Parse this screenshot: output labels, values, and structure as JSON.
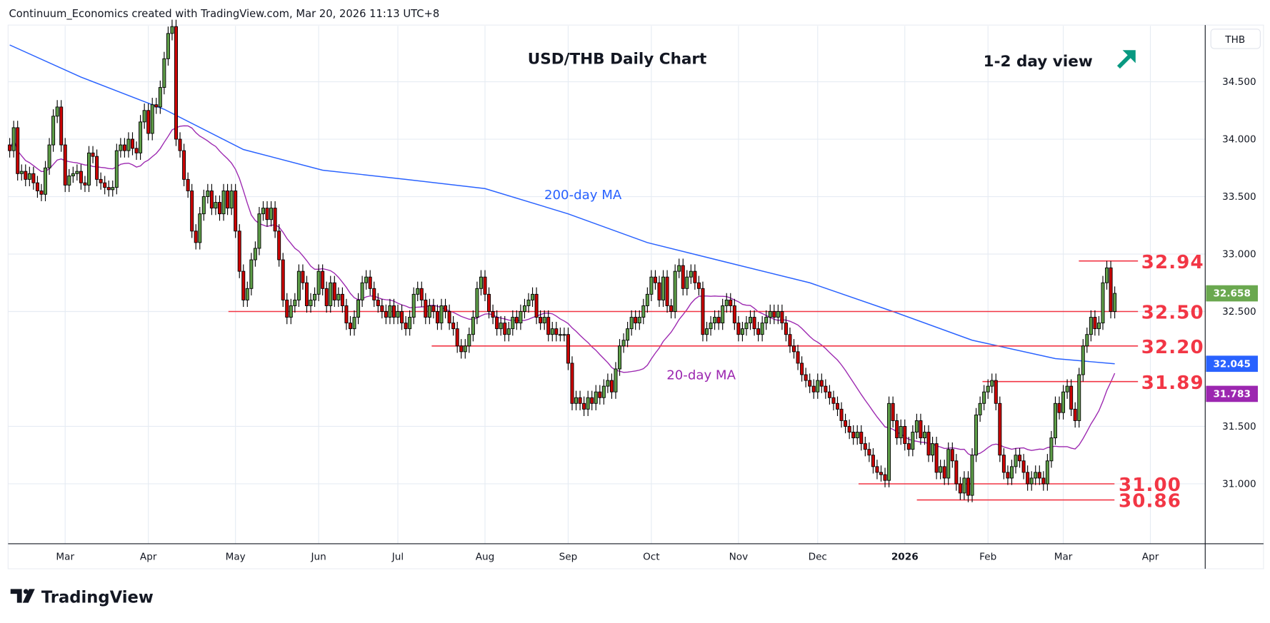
{
  "header": {
    "attribution": "Continuum_Economics created with TradingView.com, Mar 20, 2026 11:13 UTC+8"
  },
  "footer": {
    "logo_text": "TradingView"
  },
  "chart_data": {
    "type": "candlestick",
    "title": "USD/THB Daily Chart",
    "view_label": "1-2 day view",
    "view_icon": "arrow-up-right-icon",
    "currency": "THB",
    "ylim": [
      30.48,
      34.99
    ],
    "y_ticks": [
      "31.000",
      "31.500",
      "32.500",
      "33.000",
      "33.500",
      "34.000",
      "34.500"
    ],
    "y_tick_values": [
      31.0,
      31.5,
      32.5,
      33.0,
      33.5,
      34.0,
      34.5
    ],
    "x_ticks": [
      "Mar",
      "Apr",
      "May",
      "Jun",
      "Jul",
      "Aug",
      "Sep",
      "Oct",
      "Nov",
      "Dec",
      "2026",
      "Feb",
      "Mar",
      "Apr"
    ],
    "grid": true,
    "colors": {
      "up": "#5e9e48",
      "down": "#cc0000",
      "ma200": "#2962ff",
      "ma20": "#9c27b0",
      "levels": "#f23645",
      "last": "#6aa84f",
      "arrow": "#089981"
    },
    "closes": [
      33.9,
      34.1,
      33.7,
      33.72,
      33.65,
      33.7,
      33.62,
      33.55,
      33.52,
      33.75,
      33.95,
      34.2,
      34.28,
      33.95,
      33.6,
      33.68,
      33.7,
      33.72,
      33.62,
      33.6,
      33.88,
      33.85,
      33.65,
      33.62,
      33.58,
      33.56,
      33.58,
      33.9,
      33.95,
      33.9,
      34.0,
      33.92,
      33.88,
      34.15,
      34.25,
      34.05,
      34.3,
      34.28,
      34.45,
      34.7,
      34.92,
      34.98,
      34.0,
      33.9,
      33.65,
      33.55,
      33.2,
      33.1,
      33.35,
      33.5,
      33.55,
      33.4,
      33.45,
      33.35,
      33.55,
      33.4,
      33.55,
      33.2,
      32.85,
      32.6,
      32.7,
      32.95,
      33.05,
      33.35,
      33.4,
      33.3,
      33.4,
      33.2,
      32.95,
      32.6,
      32.45,
      32.55,
      32.6,
      32.85,
      32.75,
      32.55,
      32.6,
      32.65,
      32.85,
      32.7,
      32.55,
      32.75,
      32.6,
      32.65,
      32.55,
      32.4,
      32.35,
      32.45,
      32.6,
      32.75,
      32.8,
      32.7,
      32.6,
      32.55,
      32.5,
      32.45,
      32.55,
      32.45,
      32.5,
      32.4,
      32.35,
      32.45,
      32.65,
      32.7,
      32.6,
      32.45,
      32.55,
      32.5,
      32.4,
      32.55,
      32.5,
      32.4,
      32.35,
      32.2,
      32.15,
      32.2,
      32.3,
      32.45,
      32.7,
      32.8,
      32.65,
      32.5,
      32.45,
      32.35,
      32.4,
      32.3,
      32.35,
      32.45,
      32.4,
      32.5,
      32.55,
      32.6,
      32.65,
      32.45,
      32.4,
      32.45,
      32.3,
      32.35,
      32.3,
      32.3,
      32.3,
      32.05,
      31.7,
      31.75,
      31.7,
      31.65,
      31.75,
      31.7,
      31.8,
      31.75,
      31.85,
      31.9,
      31.8,
      32.0,
      32.2,
      32.25,
      32.35,
      32.45,
      32.4,
      32.45,
      32.55,
      32.65,
      32.8,
      32.75,
      32.6,
      32.8,
      32.55,
      32.5,
      32.85,
      32.9,
      32.7,
      32.8,
      32.85,
      32.75,
      32.7,
      32.3,
      32.35,
      32.4,
      32.45,
      32.4,
      32.55,
      32.6,
      32.55,
      32.4,
      32.3,
      32.35,
      32.4,
      32.45,
      32.35,
      32.3,
      32.4,
      32.45,
      32.5,
      32.45,
      32.5,
      32.4,
      32.3,
      32.2,
      32.15,
      32.05,
      31.95,
      31.9,
      31.85,
      31.8,
      31.9,
      31.85,
      31.8,
      31.75,
      31.7,
      31.65,
      31.55,
      31.5,
      31.45,
      31.4,
      31.45,
      31.35,
      31.3,
      31.25,
      31.15,
      31.1,
      31.08,
      31.03,
      31.7,
      31.55,
      31.4,
      31.5,
      31.35,
      31.3,
      31.45,
      31.55,
      31.4,
      31.45,
      31.25,
      31.35,
      31.1,
      31.15,
      31.05,
      31.3,
      31.2,
      31.0,
      30.92,
      31.05,
      30.9,
      31.25,
      31.6,
      31.7,
      31.8,
      31.85,
      31.9,
      31.7,
      31.25,
      31.1,
      31.05,
      31.15,
      31.25,
      31.2,
      31.1,
      31.0,
      31.05,
      31.1,
      31.05,
      31.0,
      31.2,
      31.4,
      31.7,
      31.62,
      31.8,
      31.85,
      31.65,
      31.55,
      31.95,
      32.2,
      32.3,
      32.45,
      32.35,
      32.4,
      32.75,
      32.88,
      32.5,
      32.658
    ],
    "last_high": 32.94,
    "ma200_samples": [
      [
        0,
        34.82
      ],
      [
        18,
        34.54
      ],
      [
        39,
        34.26
      ],
      [
        59,
        33.91
      ],
      [
        79,
        33.73
      ],
      [
        100,
        33.65
      ],
      [
        120,
        33.57
      ],
      [
        141,
        33.35
      ],
      [
        161,
        33.1
      ],
      [
        182,
        32.92
      ],
      [
        202,
        32.75
      ],
      [
        223,
        32.5
      ],
      [
        243,
        32.25
      ],
      [
        264,
        32.09
      ],
      [
        279,
        32.045
      ]
    ],
    "annotations": {
      "ma200_label": "200-day MA",
      "ma20_label": "20-day MA"
    },
    "levels": [
      {
        "value": 32.94,
        "label": "32.94"
      },
      {
        "value": 32.5,
        "label": "32.50"
      },
      {
        "value": 32.2,
        "label": "32.20"
      },
      {
        "value": 31.89,
        "label": "31.89"
      },
      {
        "value": 31.0,
        "label": "31.00"
      },
      {
        "value": 30.86,
        "label": "30.86"
      }
    ],
    "price_tags": [
      {
        "label": "32.658",
        "value": 32.658,
        "color": "#6aa84f"
      },
      {
        "label": "32.045",
        "value": 32.045,
        "color": "#2962ff"
      },
      {
        "label": "31.783",
        "value": 31.783,
        "color": "#9c27b0"
      }
    ]
  }
}
